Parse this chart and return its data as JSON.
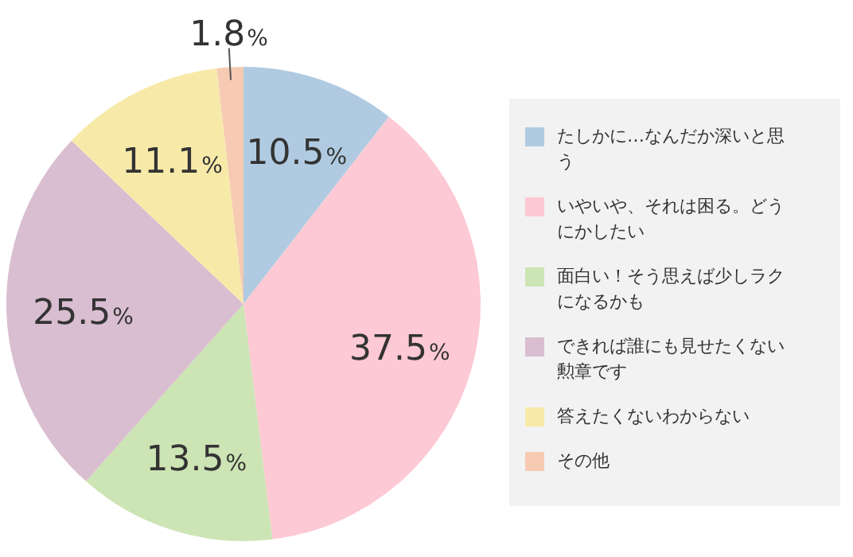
{
  "chart_data": {
    "type": "pie",
    "categories": [
      "たしかに…なんだか深いと思う",
      "いやいや、それは困る。どうにかしたい",
      "面白い！そう思えば少しラクになるかも",
      "できれば誰にも見せたくない勲章です",
      "答えたくないわからない",
      "その他"
    ],
    "values": [
      10.5,
      37.5,
      13.5,
      25.5,
      11.1,
      1.8
    ],
    "value_labels": [
      "10.5%",
      "37.5%",
      "13.5%",
      "25.5%",
      "11.1%",
      "1.8%"
    ],
    "colors": [
      "#b0cbe1",
      "#fdc9d4",
      "#cde4b5",
      "#d9bdd0",
      "#f7eaa9",
      "#f6cab3"
    ],
    "legend": "right"
  }
}
